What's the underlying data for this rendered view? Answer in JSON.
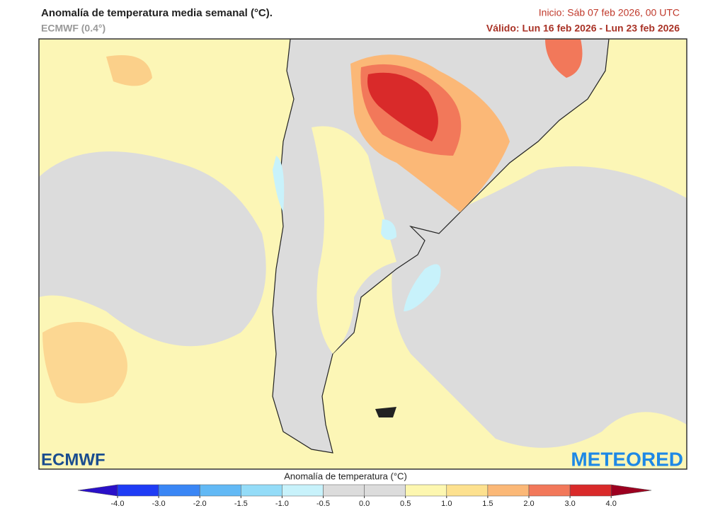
{
  "header": {
    "title": "Anomalía de temperatura media semanal (°C).",
    "subtitle": "ECMWF (0.4°)",
    "init": "Inicio: Sáb 07 feb 2026, 00 UTC",
    "valid": "Válido: Lun 16 feb 2026 - Lun 23 feb 2026"
  },
  "logos": {
    "left": "ECMWF",
    "right": "METEORED"
  },
  "legend": {
    "title": "Anomalía de temperatura (°C)",
    "ticks": [
      {
        "value": -4,
        "label": "-4.0"
      },
      {
        "value": -3,
        "label": "-3.0"
      },
      {
        "value": -2,
        "label": "-2.0"
      },
      -1.5,
      {
        "value": -1,
        "label": "-1.0"
      },
      -0.5,
      {
        "value": 0,
        "label": "0.0"
      },
      0.5,
      {
        "value": 1,
        "label": "1.0"
      },
      1.5,
      {
        "value": 2,
        "label": "2.0"
      },
      {
        "value": 3,
        "label": "3.0"
      },
      {
        "value": 4,
        "label": "4.0"
      }
    ],
    "under_color": "#2a10c8",
    "over_color": "#9c0020",
    "colors": [
      "#1f3cf5",
      "#3a86f5",
      "#62b9f5",
      "#94dcf8",
      "#c8f2fb",
      "#dcdcdc",
      "#dcdcdc",
      "#fdf7b0",
      "#fde18f",
      "#fbb877",
      "#f2785a",
      "#d92a2a"
    ]
  }
}
